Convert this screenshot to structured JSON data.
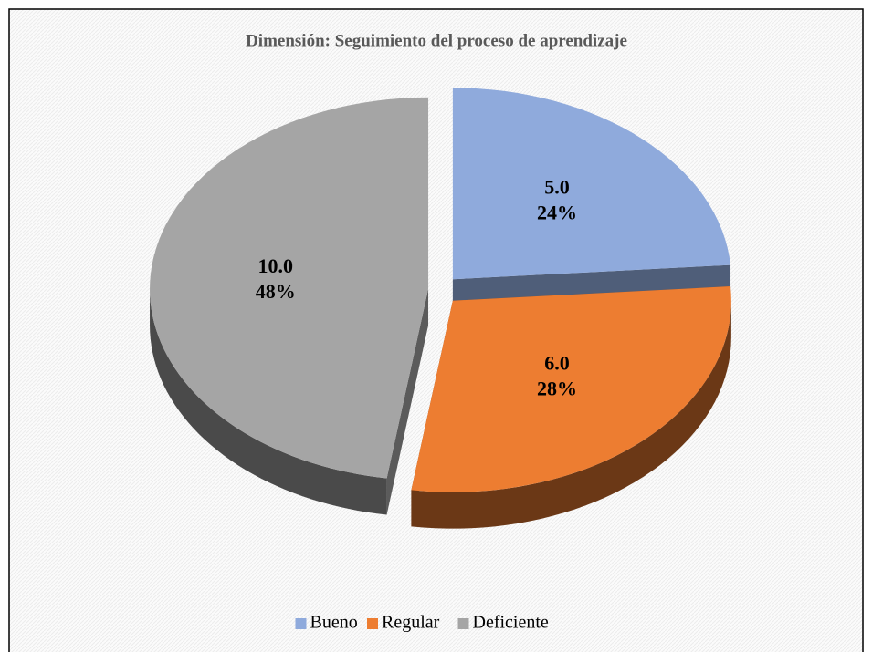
{
  "chart_data": {
    "type": "pie3d",
    "title": "Dimensión: Seguimiento del proceso de aprendizaje",
    "categories": [
      "Bueno",
      "Regular",
      "Deficiente"
    ],
    "values": [
      5,
      6,
      10
    ],
    "value_labels": [
      "5.0",
      "6.0",
      "10.0"
    ],
    "percentages": [
      24,
      28,
      48
    ],
    "percent_labels": [
      "24%",
      "28%",
      "48%"
    ],
    "colors": [
      "#8faadc",
      "#ed7d31",
      "#a5a5a5"
    ],
    "legend": "bottom"
  }
}
